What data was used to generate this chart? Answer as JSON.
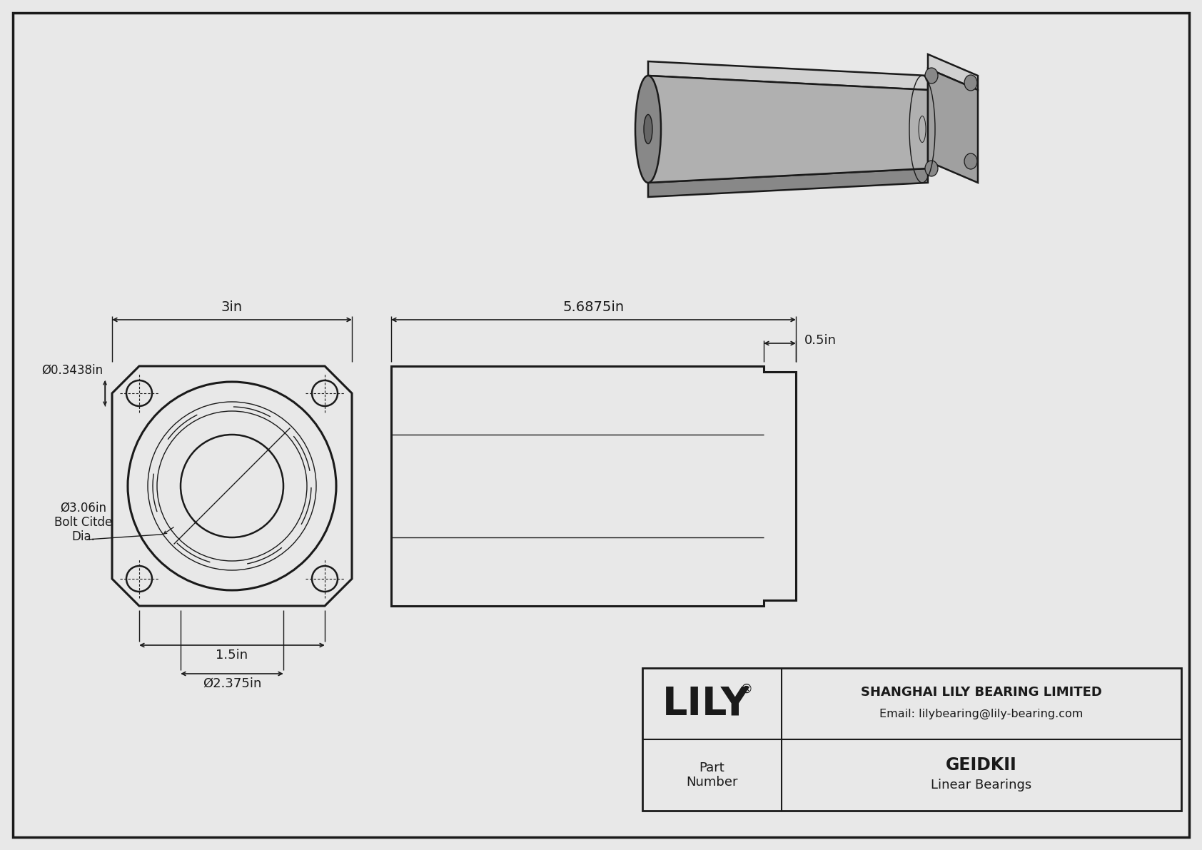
{
  "bg_color": "#e8e8e8",
  "line_color": "#1a1a1a",
  "company": "SHANGHAI LILY BEARING LIMITED",
  "email": "Email: lilybearing@lily-bearing.com",
  "part_number": "GEIDKII",
  "part_type": "Linear Bearings",
  "part_label": "Part\nNumber",
  "lily_text": "LILY",
  "dim_width": "3in",
  "dim_length": "5.6875in",
  "dim_flange": "0.5in",
  "dim_bolt_hole": "Ø0.3438in",
  "dim_bolt_circle_1": "Ø3.06in",
  "dim_bolt_circle_2": "Bolt Citde",
  "dim_bolt_circle_3": "Dia.",
  "dim_inner_dia": "Ø2.375in",
  "dim_bolt_spacing": "1.5in"
}
